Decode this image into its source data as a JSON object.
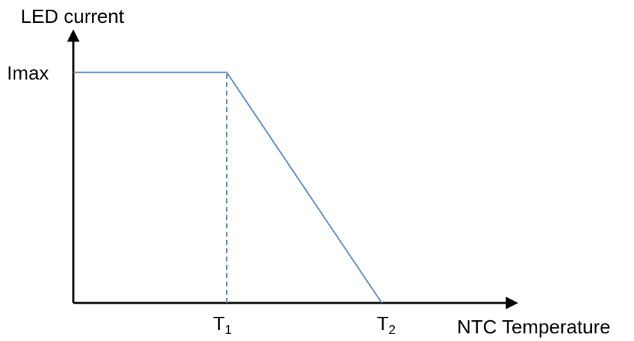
{
  "chart_data": {
    "type": "line",
    "ylabel": "LED current",
    "xlabel": "NTC Temperature",
    "y_tick_labels": [
      "Imax"
    ],
    "x_tick_labels": [
      {
        "base": "T",
        "sub": "1"
      },
      {
        "base": "T",
        "sub": "2"
      }
    ],
    "series": [
      {
        "points": [
          {
            "x": 0,
            "y": 1
          },
          {
            "x": 1,
            "y": 1
          },
          {
            "x": 2.01,
            "y": 0
          }
        ]
      }
    ],
    "reference_lines": [
      {
        "x": 1,
        "y_from": 0,
        "y_to": 1,
        "style": "dashed"
      }
    ],
    "xlim": [
      0,
      2.87
    ],
    "ylim": [
      0,
      1.2
    ],
    "grid": false,
    "colors": {
      "line": "#5b87b8",
      "axis": "#000000"
    }
  }
}
